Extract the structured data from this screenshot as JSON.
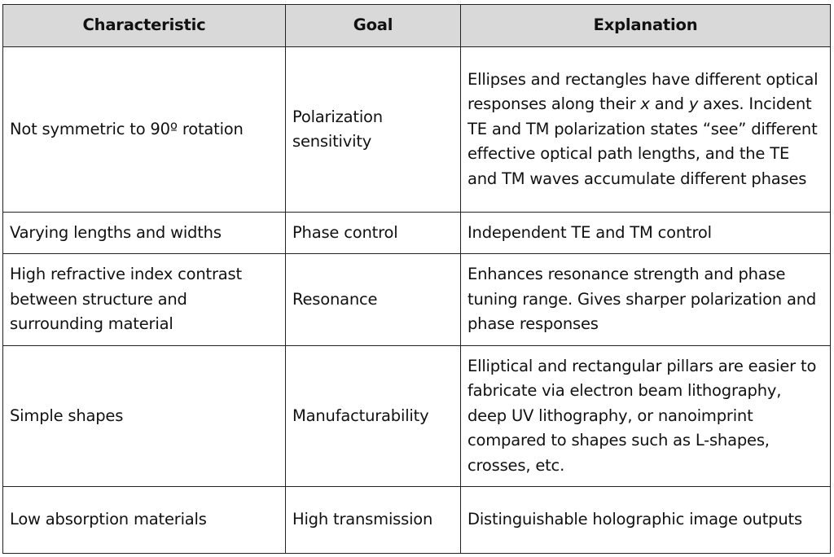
{
  "headers": [
    "Characteristic",
    "Goal",
    "Explanation"
  ],
  "rows": [
    {
      "characteristic": "Not symmetric to 90º rotation",
      "goal": "Polarization sensitivity",
      "explanation": {
        "before": "Ellipses and rectangles have different optical responses along their ",
        "x": "x",
        "and": " and ",
        "y": "y",
        "after": " axes. Incident TE and TM polarization states “see” different effective optical path lengths, and the TE and TM waves accumulate different phases"
      }
    },
    {
      "characteristic": "Varying lengths and widths",
      "goal": "Phase control",
      "explanation": "Independent TE and TM control"
    },
    {
      "characteristic": "High refractive index contrast between structure and surrounding material",
      "goal": "Resonance",
      "explanation": "Enhances resonance strength and phase tuning range. Gives sharper polarization and phase responses"
    },
    {
      "characteristic": "Simple shapes",
      "goal": "Manufacturability",
      "explanation": "Elliptical and rectangular pillars are easier to fabricate via electron beam lithography, deep UV lithography, or nanoimprint compared to shapes such as L-shapes, crosses, etc."
    },
    {
      "characteristic": "Low absorption materials",
      "goal": "High transmission",
      "explanation": "Distinguishable holographic image outputs"
    }
  ]
}
